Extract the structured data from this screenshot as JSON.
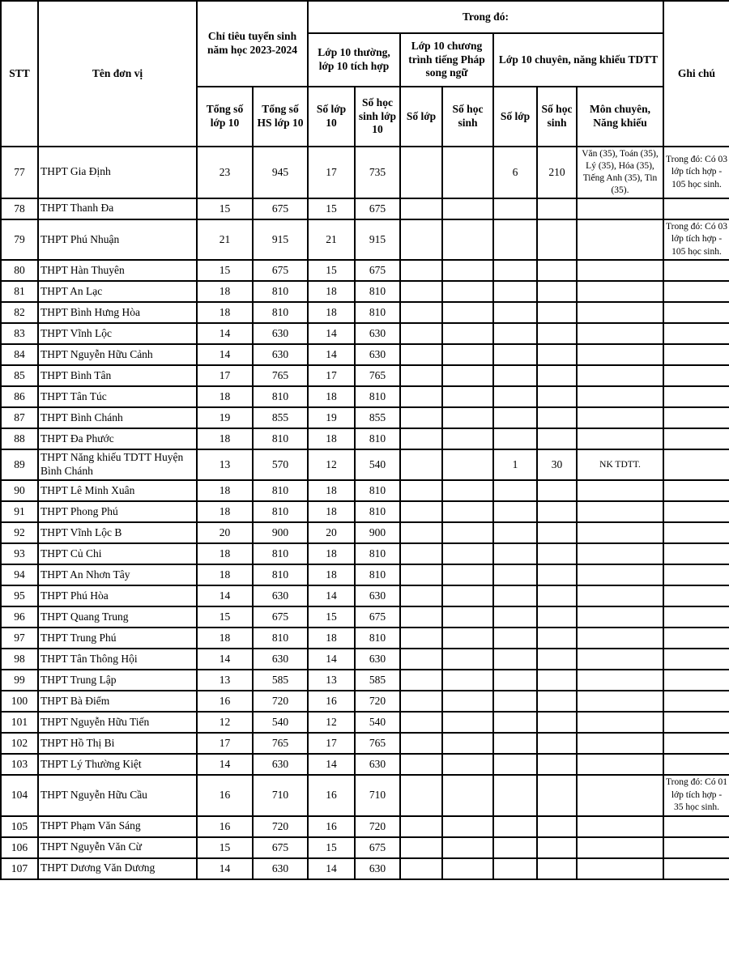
{
  "header": {
    "stt": "STT",
    "unit": "Tên đơn vị",
    "quota_group": "Chỉ tiêu tuyển sinh năm học 2023-2024",
    "in_which": "Trong đó:",
    "regular_group": "Lớp 10 thường, lớp 10 tích hợp",
    "french_group": "Lớp 10 chương trình tiếng Pháp song ngữ",
    "gifted_group": "Lớp 10 chuyên, năng khiếu TDTT",
    "note": "Ghi chú",
    "sub": [
      "Tổng số lớp 10",
      "Tổng số HS lớp 10",
      "Số lớp 10",
      "Số học sinh lớp 10",
      "Số lớp",
      "Số học sinh",
      "Số lớp",
      "Số học sinh",
      "Môn chuyên, Năng khiếu"
    ]
  },
  "rows": [
    [
      "77",
      "THPT Gia Định",
      "23",
      "945",
      "17",
      "735",
      "",
      "",
      "6",
      "210",
      "Văn (35), Toán (35), Lý (35), Hóa (35), Tiếng Anh (35), Tin (35).",
      "Trong đó: Có 03 lớp tích hợp - 105 học sinh."
    ],
    [
      "78",
      "THPT Thanh Đa",
      "15",
      "675",
      "15",
      "675",
      "",
      "",
      "",
      "",
      "",
      ""
    ],
    [
      "79",
      "THPT Phú Nhuận",
      "21",
      "915",
      "21",
      "915",
      "",
      "",
      "",
      "",
      "",
      "Trong đó: Có 03 lớp tích hợp - 105 học sinh."
    ],
    [
      "80",
      "THPT Hàn Thuyên",
      "15",
      "675",
      "15",
      "675",
      "",
      "",
      "",
      "",
      "",
      ""
    ],
    [
      "81",
      "THPT An Lạc",
      "18",
      "810",
      "18",
      "810",
      "",
      "",
      "",
      "",
      "",
      ""
    ],
    [
      "82",
      "THPT Bình Hưng Hòa",
      "18",
      "810",
      "18",
      "810",
      "",
      "",
      "",
      "",
      "",
      ""
    ],
    [
      "83",
      "THPT Vĩnh Lộc",
      "14",
      "630",
      "14",
      "630",
      "",
      "",
      "",
      "",
      "",
      ""
    ],
    [
      "84",
      "THPT Nguyễn Hữu Cảnh",
      "14",
      "630",
      "14",
      "630",
      "",
      "",
      "",
      "",
      "",
      ""
    ],
    [
      "85",
      "THPT Bình Tân",
      "17",
      "765",
      "17",
      "765",
      "",
      "",
      "",
      "",
      "",
      ""
    ],
    [
      "86",
      "THPT Tân Túc",
      "18",
      "810",
      "18",
      "810",
      "",
      "",
      "",
      "",
      "",
      ""
    ],
    [
      "87",
      "THPT Bình Chánh",
      "19",
      "855",
      "19",
      "855",
      "",
      "",
      "",
      "",
      "",
      ""
    ],
    [
      "88",
      "THPT Đa Phước",
      "18",
      "810",
      "18",
      "810",
      "",
      "",
      "",
      "",
      "",
      ""
    ],
    [
      "89",
      "THPT Năng khiếu TDTT Huyện Bình Chánh",
      "13",
      "570",
      "12",
      "540",
      "",
      "",
      "1",
      "30",
      "NK TDTT.",
      ""
    ],
    [
      "90",
      "THPT Lê Minh Xuân",
      "18",
      "810",
      "18",
      "810",
      "",
      "",
      "",
      "",
      "",
      ""
    ],
    [
      "91",
      "THPT Phong Phú",
      "18",
      "810",
      "18",
      "810",
      "",
      "",
      "",
      "",
      "",
      ""
    ],
    [
      "92",
      "THPT Vĩnh Lộc B",
      "20",
      "900",
      "20",
      "900",
      "",
      "",
      "",
      "",
      "",
      ""
    ],
    [
      "93",
      "THPT Củ Chi",
      "18",
      "810",
      "18",
      "810",
      "",
      "",
      "",
      "",
      "",
      ""
    ],
    [
      "94",
      "THPT An Nhơn Tây",
      "18",
      "810",
      "18",
      "810",
      "",
      "",
      "",
      "",
      "",
      ""
    ],
    [
      "95",
      "THPT Phú Hòa",
      "14",
      "630",
      "14",
      "630",
      "",
      "",
      "",
      "",
      "",
      ""
    ],
    [
      "96",
      "THPT Quang Trung",
      "15",
      "675",
      "15",
      "675",
      "",
      "",
      "",
      "",
      "",
      ""
    ],
    [
      "97",
      "THPT Trung Phú",
      "18",
      "810",
      "18",
      "810",
      "",
      "",
      "",
      "",
      "",
      ""
    ],
    [
      "98",
      "THPT Tân Thông Hội",
      "14",
      "630",
      "14",
      "630",
      "",
      "",
      "",
      "",
      "",
      ""
    ],
    [
      "99",
      "THPT Trung Lập",
      "13",
      "585",
      "13",
      "585",
      "",
      "",
      "",
      "",
      "",
      ""
    ],
    [
      "100",
      "THPT Bà Điểm",
      "16",
      "720",
      "16",
      "720",
      "",
      "",
      "",
      "",
      "",
      ""
    ],
    [
      "101",
      "THPT Nguyễn Hữu Tiến",
      "12",
      "540",
      "12",
      "540",
      "",
      "",
      "",
      "",
      "",
      ""
    ],
    [
      "102",
      "THPT Hồ Thị Bi",
      "17",
      "765",
      "17",
      "765",
      "",
      "",
      "",
      "",
      "",
      ""
    ],
    [
      "103",
      "THPT Lý Thường Kiệt",
      "14",
      "630",
      "14",
      "630",
      "",
      "",
      "",
      "",
      "",
      ""
    ],
    [
      "104",
      "THPT Nguyễn Hữu Cầu",
      "16",
      "710",
      "16",
      "710",
      "",
      "",
      "",
      "",
      "",
      "Trong đó: Có 01 lớp tích hợp - 35 học sinh."
    ],
    [
      "105",
      "THPT Phạm Văn Sáng",
      "16",
      "720",
      "16",
      "720",
      "",
      "",
      "",
      "",
      "",
      ""
    ],
    [
      "106",
      "THPT Nguyễn Văn Cừ",
      "15",
      "675",
      "15",
      "675",
      "",
      "",
      "",
      "",
      "",
      ""
    ],
    [
      "107",
      "THPT Dương Văn Dương",
      "14",
      "630",
      "14",
      "630",
      "",
      "",
      "",
      "",
      "",
      ""
    ]
  ]
}
